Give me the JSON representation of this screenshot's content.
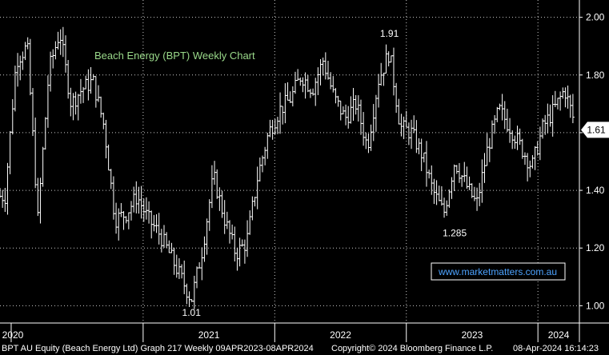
{
  "chart_data": {
    "type": "bar",
    "subtype": "ohlc",
    "title": "Beach Energy (BPT) Weekly Chart",
    "watermark": "www.marketmatters.com.au",
    "x_ticks": [
      "2020",
      "2021",
      "2022",
      "2023",
      "2024"
    ],
    "y_ticks": [
      "1.00",
      "1.20",
      "1.40",
      "1.60",
      "1.80",
      "2.00"
    ],
    "ylim": [
      0.94,
      2.06
    ],
    "last_price_label": "1.61",
    "last_price": 1.61,
    "annotations": [
      {
        "text": "1.91",
        "date": "2022-11",
        "value": 1.91
      },
      {
        "text": "1.01",
        "date": "2021-05",
        "value": 1.01
      },
      {
        "text": "1.285",
        "date": "2023-05",
        "value": 1.285
      }
    ],
    "price_path": [
      [
        "2019-12",
        1.38
      ],
      [
        "2020-01",
        1.85
      ],
      [
        "2020-02",
        1.9
      ],
      [
        "2020-03",
        1.3
      ],
      [
        "2020-04",
        1.82
      ],
      [
        "2020-05",
        1.95
      ],
      [
        "2020-06",
        1.7
      ],
      [
        "2020-07",
        1.75
      ],
      [
        "2020-08",
        1.78
      ],
      [
        "2020-09",
        1.62
      ],
      [
        "2020-10",
        1.3
      ],
      [
        "2020-11",
        1.32
      ],
      [
        "2020-12",
        1.38
      ],
      [
        "2021-01",
        1.3
      ],
      [
        "2021-02",
        1.25
      ],
      [
        "2021-03",
        1.18
      ],
      [
        "2021-04",
        1.1
      ],
      [
        "2021-05",
        1.02
      ],
      [
        "2021-06",
        1.2
      ],
      [
        "2021-07",
        1.45
      ],
      [
        "2021-08",
        1.3
      ],
      [
        "2021-09",
        1.18
      ],
      [
        "2021-10",
        1.22
      ],
      [
        "2021-11",
        1.45
      ],
      [
        "2021-12",
        1.6
      ],
      [
        "2022-01",
        1.68
      ],
      [
        "2022-02",
        1.72
      ],
      [
        "2022-03",
        1.8
      ],
      [
        "2022-04",
        1.75
      ],
      [
        "2022-05",
        1.85
      ],
      [
        "2022-06",
        1.72
      ],
      [
        "2022-07",
        1.65
      ],
      [
        "2022-08",
        1.7
      ],
      [
        "2022-09",
        1.55
      ],
      [
        "2022-10",
        1.78
      ],
      [
        "2022-11",
        1.88
      ],
      [
        "2022-12",
        1.62
      ],
      [
        "2023-01",
        1.6
      ],
      [
        "2023-02",
        1.52
      ],
      [
        "2023-03",
        1.4
      ],
      [
        "2023-04",
        1.32
      ],
      [
        "2023-05",
        1.5
      ],
      [
        "2023-06",
        1.42
      ],
      [
        "2023-07",
        1.35
      ],
      [
        "2023-08",
        1.55
      ],
      [
        "2023-09",
        1.68
      ],
      [
        "2023-10",
        1.62
      ],
      [
        "2023-11",
        1.55
      ],
      [
        "2023-12",
        1.48
      ],
      [
        "2024-01",
        1.62
      ],
      [
        "2024-02",
        1.68
      ],
      [
        "2024-03",
        1.75
      ],
      [
        "2024-04",
        1.62
      ]
    ]
  },
  "footer": {
    "left": "BPT AU Equity (Beach Energy Ltd) Graph 217  Weekly 09APR2023-08APR2024",
    "copyright": "Copyright© 2024 Bloomberg Finance L.P.",
    "timestamp": "08-Apr-2024 16:14:23"
  },
  "colors": {
    "background": "#000000",
    "bars": "#ffffff",
    "grid": "#ffffff",
    "title": "#9ad98a",
    "watermark_text": "#4da3ff",
    "watermark_border": "#ffffff"
  }
}
